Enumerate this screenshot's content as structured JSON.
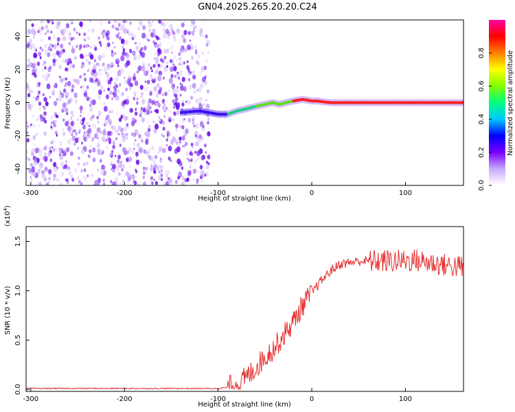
{
  "title": "GN04.2025.265.20.20.C24",
  "colors": {
    "signal": "#e62a2a",
    "scatter": "#7a1ee6",
    "colorbar": [
      "#ffffff",
      "#c9a8ff",
      "#7a00ff",
      "#0000ff",
      "#00c8ff",
      "#00ff80",
      "#80ff00",
      "#ffff00",
      "#ff8000",
      "#ff0000",
      "#ff00a0"
    ]
  },
  "chart_data": [
    {
      "type": "heatmap",
      "name": "spectrogram",
      "xlabel": "Height of straight line (km)",
      "ylabel": "Frequency (Hz)",
      "xlim": [
        -305,
        162
      ],
      "ylim": [
        -50,
        50
      ],
      "xticks": [
        -300,
        -200,
        -100,
        0,
        100
      ],
      "xtick_labels": [
        "-300",
        "-200",
        "-100",
        "0",
        "100"
      ],
      "yticks": [
        -40,
        -20,
        0,
        20,
        40
      ],
      "ytick_labels": [
        "-40",
        "-20",
        "0",
        "20",
        "40"
      ],
      "noise_region_x": [
        -305,
        -110
      ],
      "ridge": {
        "x": [
          -140,
          -120,
          -100,
          -90,
          -80,
          -72,
          -65,
          -58,
          -50,
          -42,
          -35,
          -28,
          -20,
          -10,
          0,
          5,
          20,
          60,
          100,
          162
        ],
        "y": [
          -6,
          -5,
          -7,
          -7,
          -5,
          -4,
          -3,
          -2,
          -1,
          0,
          -1,
          0,
          1,
          2,
          1,
          1,
          0,
          0,
          0,
          0
        ]
      },
      "colorbar": {
        "label": "Normalized spectral amplitude",
        "range": [
          0,
          1
        ],
        "ticks": [
          0,
          0.2,
          0.4,
          0.6,
          0.8
        ],
        "tick_labels": [
          "0.0",
          "0.2",
          "0.4",
          "0.6",
          "0.8"
        ]
      }
    },
    {
      "type": "line",
      "name": "snr",
      "xlabel": "Height of straight line (km)",
      "ylabel": "SNR (10 * v/v)",
      "exponent_label": "(x10",
      "exponent_power": "4",
      "exponent_close": ")",
      "xlim": [
        -305,
        162
      ],
      "ylim": [
        -0.02,
        1.65
      ],
      "xticks": [
        -300,
        -200,
        -100,
        0,
        100
      ],
      "xtick_labels": [
        "-300",
        "-200",
        "-100",
        "0",
        "100"
      ],
      "yticks": [
        0,
        0.5,
        1.0,
        1.5
      ],
      "ytick_labels": [
        "0.0",
        "0.5",
        "1.0",
        "1.5"
      ],
      "series": [
        {
          "name": "SNR",
          "x": [
            -305,
            -100,
            -90,
            -80,
            -70,
            -60,
            -50,
            -40,
            -30,
            -20,
            -10,
            0,
            10,
            20,
            30,
            50,
            70,
            90,
            110,
            130,
            150,
            162
          ],
          "y": [
            0.01,
            0.01,
            0.02,
            0.05,
            0.12,
            0.22,
            0.33,
            0.42,
            0.55,
            0.68,
            0.85,
            0.98,
            1.1,
            1.2,
            1.27,
            1.3,
            1.3,
            1.3,
            1.31,
            1.28,
            1.25,
            1.24
          ]
        }
      ]
    }
  ]
}
